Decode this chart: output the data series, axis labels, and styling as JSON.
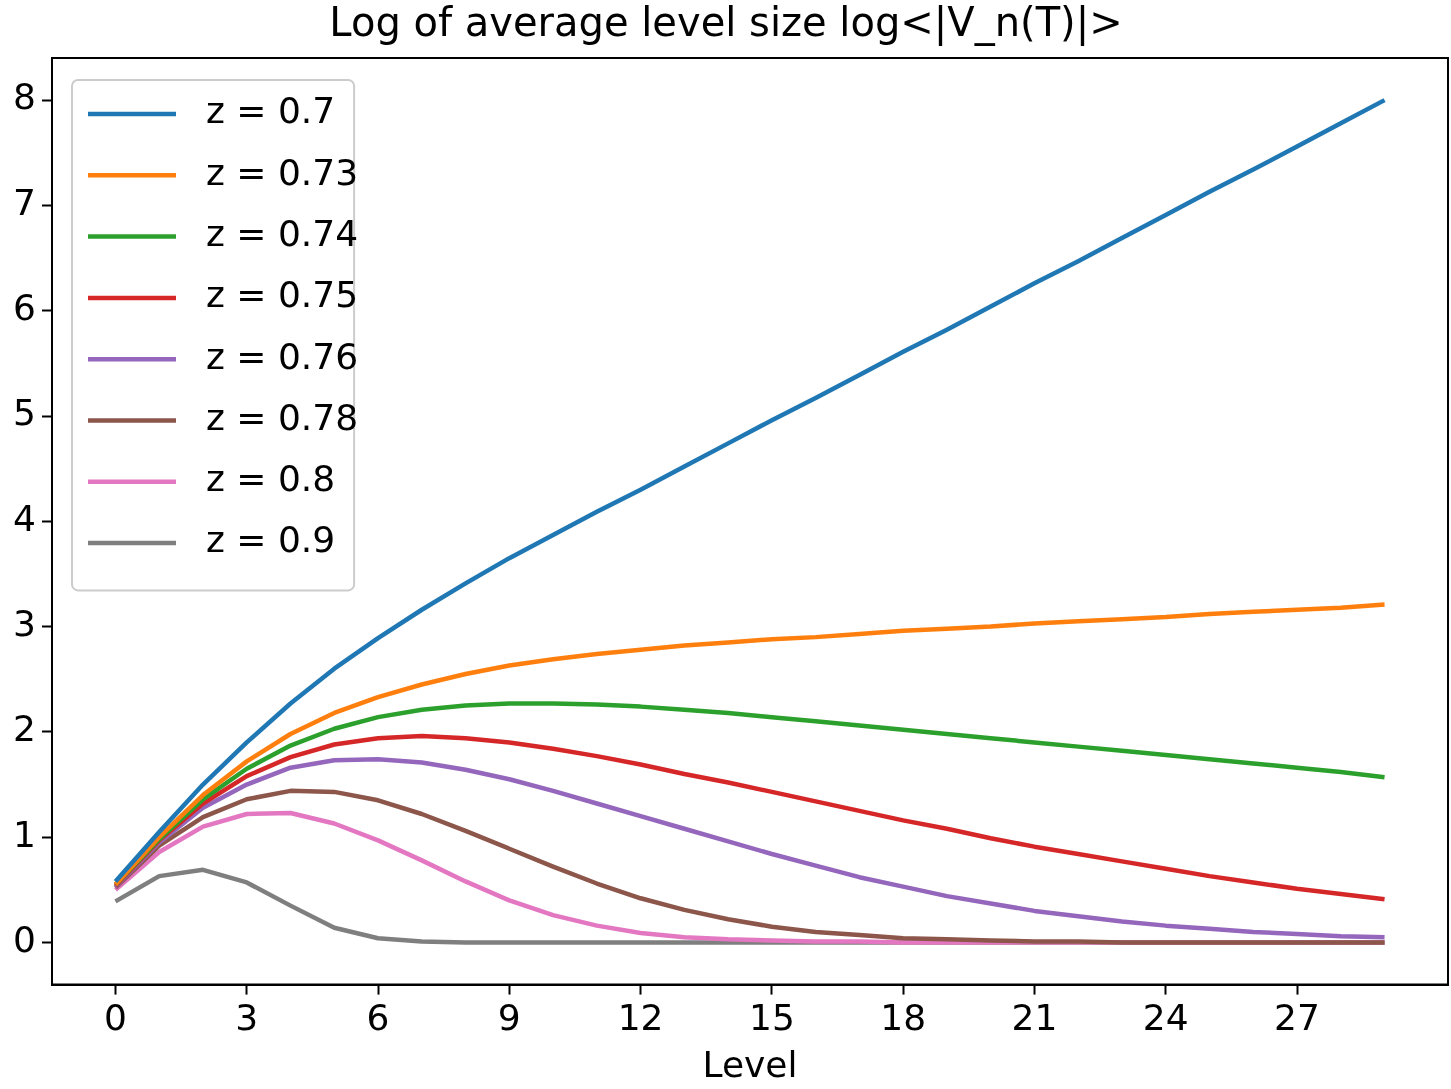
{
  "chart_data": {
    "type": "line",
    "title": "Log of average level size log<|V_n(T)|>",
    "xlabel": "Level",
    "x": [
      0,
      1,
      2,
      3,
      4,
      5,
      6,
      7,
      8,
      9,
      10,
      11,
      12,
      13,
      14,
      15,
      16,
      17,
      18,
      19,
      20,
      21,
      22,
      23,
      24,
      25,
      26,
      27,
      28,
      29
    ],
    "xlim": [
      -1.45,
      30.45
    ],
    "xticks": [
      0,
      3,
      6,
      9,
      12,
      15,
      18,
      21,
      24,
      27
    ],
    "ylim": [
      -0.4,
      8.4
    ],
    "yticks": [
      0,
      1,
      2,
      3,
      4,
      5,
      6,
      7,
      8
    ],
    "grid": false,
    "legend": "top left",
    "marker": "none",
    "line_style": "solid",
    "series": [
      {
        "name": "z = 0.7",
        "color": "#1f77b4",
        "values": [
          0.58,
          1.05,
          1.5,
          1.9,
          2.27,
          2.6,
          2.89,
          3.16,
          3.41,
          3.65,
          3.87,
          4.09,
          4.3,
          4.52,
          4.74,
          4.96,
          5.17,
          5.39,
          5.61,
          5.82,
          6.04,
          6.26,
          6.47,
          6.69,
          6.91,
          7.13,
          7.34,
          7.56,
          7.78,
          8.0
        ]
      },
      {
        "name": "z = 0.73",
        "color": "#ff7f0e",
        "values": [
          0.55,
          1.0,
          1.4,
          1.72,
          1.98,
          2.18,
          2.33,
          2.45,
          2.55,
          2.63,
          2.69,
          2.74,
          2.78,
          2.82,
          2.85,
          2.88,
          2.9,
          2.93,
          2.96,
          2.98,
          3.0,
          3.03,
          3.05,
          3.07,
          3.09,
          3.12,
          3.14,
          3.16,
          3.18,
          3.21
        ]
      },
      {
        "name": "z = 0.74",
        "color": "#2ca02c",
        "values": [
          0.55,
          0.98,
          1.36,
          1.65,
          1.87,
          2.03,
          2.14,
          2.21,
          2.25,
          2.27,
          2.27,
          2.26,
          2.24,
          2.21,
          2.18,
          2.14,
          2.1,
          2.06,
          2.02,
          1.98,
          1.94,
          1.9,
          1.86,
          1.82,
          1.78,
          1.74,
          1.7,
          1.66,
          1.62,
          1.57
        ]
      },
      {
        "name": "z = 0.75",
        "color": "#d62728",
        "values": [
          0.54,
          0.97,
          1.32,
          1.58,
          1.76,
          1.88,
          1.94,
          1.96,
          1.94,
          1.9,
          1.84,
          1.77,
          1.69,
          1.6,
          1.52,
          1.43,
          1.34,
          1.25,
          1.16,
          1.08,
          0.99,
          0.91,
          0.84,
          0.77,
          0.7,
          0.63,
          0.57,
          0.51,
          0.46,
          0.41
        ]
      },
      {
        "name": "z = 0.76",
        "color": "#9467bd",
        "values": [
          0.53,
          0.95,
          1.28,
          1.5,
          1.66,
          1.73,
          1.74,
          1.71,
          1.64,
          1.55,
          1.44,
          1.32,
          1.2,
          1.08,
          0.96,
          0.84,
          0.73,
          0.62,
          0.53,
          0.44,
          0.37,
          0.3,
          0.25,
          0.2,
          0.16,
          0.13,
          0.1,
          0.08,
          0.06,
          0.05
        ]
      },
      {
        "name": "z = 0.78",
        "color": "#8c564b",
        "values": [
          0.52,
          0.92,
          1.19,
          1.36,
          1.44,
          1.43,
          1.35,
          1.22,
          1.06,
          0.89,
          0.72,
          0.56,
          0.42,
          0.31,
          0.22,
          0.15,
          0.1,
          0.07,
          0.04,
          0.03,
          0.02,
          0.01,
          0.01,
          0,
          0,
          0,
          0,
          0,
          0,
          0
        ]
      },
      {
        "name": "z = 0.8",
        "color": "#e377c2",
        "values": [
          0.5,
          0.86,
          1.1,
          1.22,
          1.23,
          1.13,
          0.97,
          0.78,
          0.58,
          0.4,
          0.26,
          0.16,
          0.09,
          0.05,
          0.03,
          0.02,
          0.01,
          0.01,
          0,
          0,
          0,
          0,
          0,
          0,
          0,
          0,
          0,
          0,
          0,
          0
        ]
      },
      {
        "name": "z = 0.9",
        "color": "#7f7f7f",
        "values": [
          0.39,
          0.63,
          0.69,
          0.57,
          0.35,
          0.14,
          0.04,
          0.01,
          0,
          0,
          0,
          0,
          0,
          0,
          0,
          0,
          0,
          0,
          0,
          0,
          0,
          0,
          0,
          0,
          0,
          0,
          0,
          0,
          0,
          0
        ]
      }
    ]
  }
}
